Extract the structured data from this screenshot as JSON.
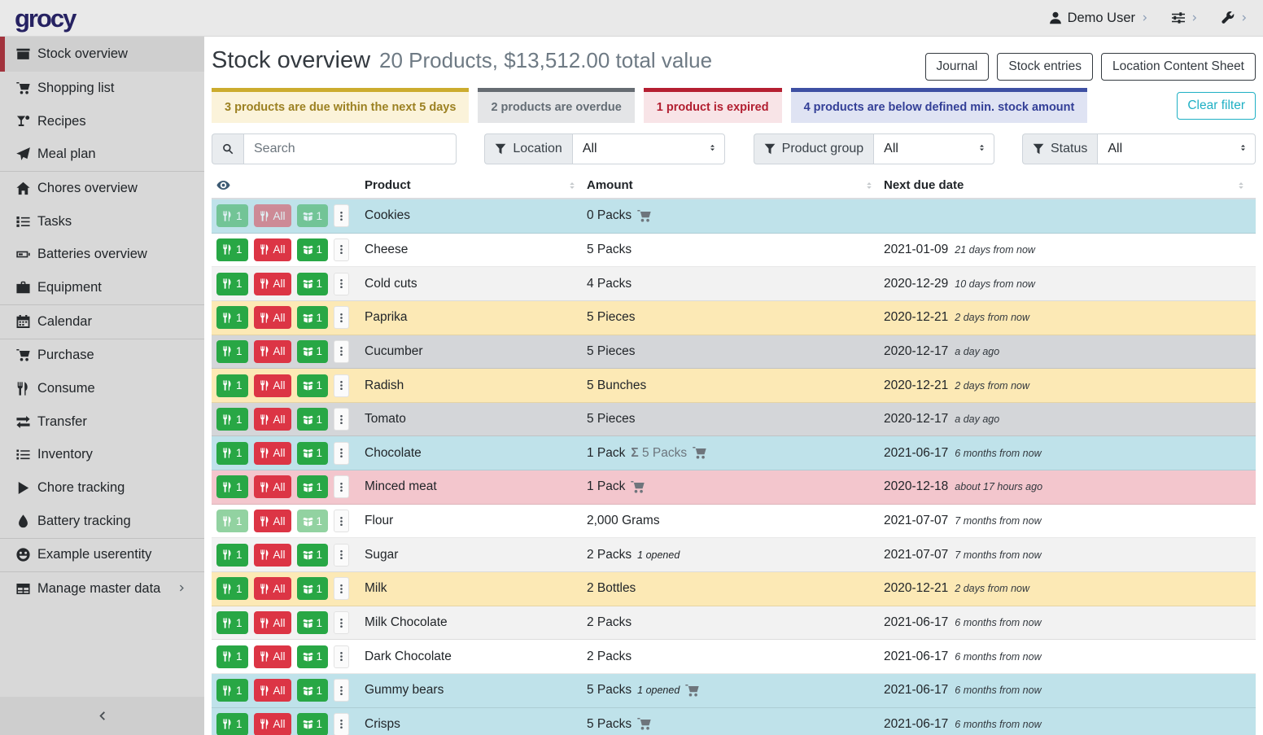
{
  "navbar": {
    "logo": "grocy",
    "menus": [
      {
        "name": "user-menu",
        "icon": "person",
        "label": "Demo User"
      },
      {
        "name": "settings-menu",
        "icon": "sliders",
        "label": ""
      },
      {
        "name": "admin-menu",
        "icon": "wrench",
        "label": ""
      }
    ]
  },
  "sidebar": {
    "items": [
      {
        "label": "Stock overview",
        "icon": "box",
        "active": true
      },
      {
        "label": "Shopping list",
        "icon": "cart"
      },
      {
        "label": "Recipes",
        "icon": "cocktail"
      },
      {
        "label": "Meal plan",
        "icon": "plane",
        "divider_after": true
      },
      {
        "label": "Chores overview",
        "icon": "home"
      },
      {
        "label": "Tasks",
        "icon": "tasks"
      },
      {
        "label": "Batteries overview",
        "icon": "battery"
      },
      {
        "label": "Equipment",
        "icon": "briefcase",
        "divider_after": true
      },
      {
        "label": "Calendar",
        "icon": "calendar",
        "divider_after": true
      },
      {
        "label": "Purchase",
        "icon": "cart"
      },
      {
        "label": "Consume",
        "icon": "utensils"
      },
      {
        "label": "Transfer",
        "icon": "exchange"
      },
      {
        "label": "Inventory",
        "icon": "list"
      },
      {
        "label": "Chore tracking",
        "icon": "play"
      },
      {
        "label": "Battery tracking",
        "icon": "droplet",
        "divider_after": true
      },
      {
        "label": "Example userentity",
        "icon": "smiley",
        "divider_after": true
      },
      {
        "label": "Manage master data",
        "icon": "table",
        "chevron": true
      }
    ]
  },
  "header": {
    "title": "Stock overview",
    "subtitle": "20 Products, $13,512.00 total value",
    "buttons": [
      "Journal",
      "Stock entries",
      "Location Content Sheet"
    ]
  },
  "banners": [
    {
      "text": "3 products are due within the next 5 days",
      "type": "due"
    },
    {
      "text": "2 products are overdue",
      "type": "overdue"
    },
    {
      "text": "1 product is expired",
      "type": "expired"
    },
    {
      "text": "4 products are below defined min. stock amount",
      "type": "belowmin"
    }
  ],
  "clear_filter_label": "Clear filter",
  "filters": {
    "search_placeholder": "Search",
    "groups": [
      {
        "label": "Location",
        "value": "All"
      },
      {
        "label": "Product group",
        "value": "All"
      },
      {
        "label": "Status",
        "value": "All"
      }
    ]
  },
  "table": {
    "columns": [
      "Product",
      "Amount",
      "Next due date"
    ],
    "sum_prefix": "Σ",
    "row_buttons": {
      "consume_one": "1",
      "consume_all": "All",
      "open_one": "1"
    },
    "rows": [
      {
        "product": "Cookies",
        "amount": "0 Packs",
        "cart": true,
        "date": "",
        "relative": "",
        "status": "belowmin",
        "fade": [
          1,
          1,
          1
        ]
      },
      {
        "product": "Cheese",
        "amount": "5 Packs",
        "date": "2021-01-09",
        "relative": "21 days from now",
        "status": "none"
      },
      {
        "product": "Cold cuts",
        "amount": "4 Packs",
        "date": "2020-12-29",
        "relative": "10 days from now",
        "status": "none"
      },
      {
        "product": "Paprika",
        "amount": "5 Pieces",
        "date": "2020-12-21",
        "relative": "2 days from now",
        "status": "due"
      },
      {
        "product": "Cucumber",
        "amount": "5 Pieces",
        "date": "2020-12-17",
        "relative": "a day ago",
        "status": "overdue"
      },
      {
        "product": "Radish",
        "amount": "5 Bunches",
        "date": "2020-12-21",
        "relative": "2 days from now",
        "status": "due"
      },
      {
        "product": "Tomato",
        "amount": "5 Pieces",
        "date": "2020-12-17",
        "relative": "a day ago",
        "status": "overdue"
      },
      {
        "product": "Chocolate",
        "amount": "1 Pack",
        "sum": "5 Packs",
        "cart": true,
        "date": "2021-06-17",
        "relative": "6 months from now",
        "status": "belowmin"
      },
      {
        "product": "Minced meat",
        "amount": "1 Pack",
        "cart": true,
        "date": "2020-12-18",
        "relative": "about 17 hours ago",
        "status": "expired"
      },
      {
        "product": "Flour",
        "amount": "2,000 Grams",
        "date": "2021-07-07",
        "relative": "7 months from now",
        "status": "none",
        "fade": [
          1,
          0,
          1
        ]
      },
      {
        "product": "Sugar",
        "amount": "2 Packs",
        "opened": "1 opened",
        "date": "2021-07-07",
        "relative": "7 months from now",
        "status": "none"
      },
      {
        "product": "Milk",
        "amount": "2 Bottles",
        "date": "2020-12-21",
        "relative": "2 days from now",
        "status": "due"
      },
      {
        "product": "Milk Chocolate",
        "amount": "2 Packs",
        "date": "2021-06-17",
        "relative": "6 months from now",
        "status": "none"
      },
      {
        "product": "Dark Chocolate",
        "amount": "2 Packs",
        "date": "2021-06-17",
        "relative": "6 months from now",
        "status": "none"
      },
      {
        "product": "Gummy bears",
        "amount": "5 Packs",
        "opened": "1 opened",
        "cart": true,
        "date": "2021-06-17",
        "relative": "6 months from now",
        "status": "belowmin"
      },
      {
        "product": "Crisps",
        "amount": "5 Packs",
        "cart": true,
        "date": "2021-06-17",
        "relative": "6 months from now",
        "status": "belowmin"
      }
    ]
  },
  "colors": {
    "logo_navy": "#262262",
    "sidebar_active_red": "#a2333d",
    "success_green": "#28a745",
    "danger_red": "#dc3545",
    "info_teal": "#1fb0c4",
    "row_due": "#fce9b5",
    "row_overdue": "#d4d6d9",
    "row_expired": "#f3c6cd",
    "row_below_min": "#bfe2ea",
    "banner_due_border": "#ccac2e",
    "banner_overdue_border": "#666c72",
    "banner_expired_border": "#b51f31",
    "banner_below_min_border": "#3e50a3"
  }
}
